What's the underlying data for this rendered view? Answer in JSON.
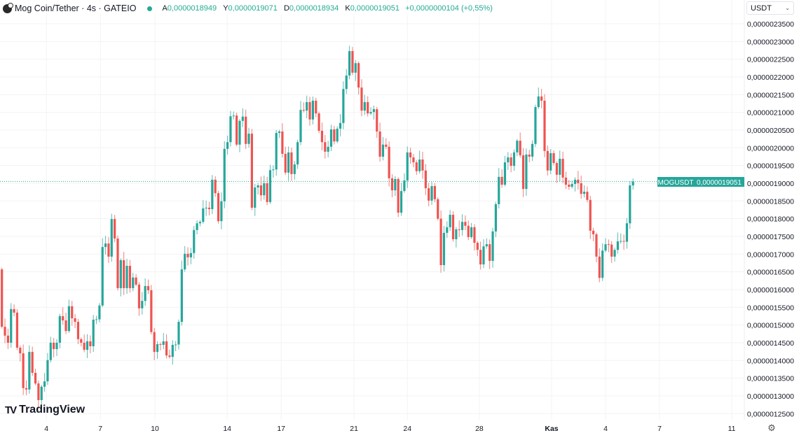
{
  "header": {
    "title": "Mog Coin/Tether · 4s · GATEIO",
    "ohlc": [
      {
        "key": "A",
        "value": "0,0000018949"
      },
      {
        "key": "Y",
        "value": "0,0000019071"
      },
      {
        "key": "D",
        "value": "0,0000018934"
      },
      {
        "key": "K",
        "value": "0,0000019051"
      }
    ],
    "change": "+0,0000000104 (+0,55%)",
    "status_color": "#22ab94"
  },
  "currency_select": {
    "value": "USDT"
  },
  "branding": {
    "logo_text": "TradingView"
  },
  "price_label": {
    "symbol": "MOGUSDT",
    "value": "0,0000019051"
  },
  "colors": {
    "up": "#26a69a",
    "down": "#ef5350",
    "grid": "#f2f3f5",
    "last_price": "#26a69a"
  },
  "chart_data": {
    "type": "candlestick",
    "title": "Mog Coin/Tether · 4s · GATEIO",
    "value_scale": "values in units of 1e-7 USDT",
    "ylim": [
      12.3,
      23.8
    ],
    "grid": true,
    "first_open": 16.57,
    "closes": [
      14.95,
      14.7,
      14.5,
      15.45,
      15.35,
      14.36,
      14.2,
      13.22,
      13.18,
      14.24,
      13.65,
      13.35,
      12.88,
      13.26,
      13.41,
      14.01,
      14.5,
      14.32,
      14.5,
      15.25,
      15.13,
      14.83,
      15.53,
      15.19,
      15.09,
      14.6,
      14.5,
      14.3,
      14.54,
      14.4,
      15.15,
      15.16,
      15.55,
      17.2,
      17.3,
      16.93,
      17.99,
      17.44,
      16.04,
      16.83,
      16.04,
      16.67,
      16.04,
      16.34,
      16.14,
      15.47,
      15.68,
      16.1,
      15.98,
      14.8,
      14.24,
      14.46,
      14.44,
      14.54,
      14.14,
      14.1,
      14.44,
      14.45,
      15.09,
      16.57,
      17.01,
      16.91,
      17.03,
      17.68,
      17.87,
      17.91,
      18.29,
      18.31,
      18.27,
      19.1,
      18.72,
      17.93,
      18.49,
      19.97,
      20.16,
      20.89,
      20.91,
      20.09,
      20.76,
      20.88,
      20.11,
      20.4,
      18.31,
      18.88,
      18.94,
      18.66,
      19.0,
      18.47,
      19.37,
      19.39,
      20.42,
      20.46,
      19.83,
      19.3,
      19.87,
      19.26,
      19.53,
      20.16,
      21.07,
      21.05,
      21.29,
      20.8,
      21.33,
      20.97,
      20.48,
      20.16,
      19.89,
      20.03,
      20.52,
      20.18,
      20.54,
      20.7,
      21.66,
      22.04,
      22.73,
      22.12,
      22.39,
      21.7,
      21.05,
      21.29,
      20.97,
      21.01,
      21.09,
      20.46,
      19.75,
      20.09,
      20.03,
      19.14,
      18.8,
      19.12,
      18.17,
      18.78,
      19.08,
      19.87,
      19.73,
      19.59,
      19.34,
      19.67,
      19.36,
      18.86,
      18.51,
      18.92,
      18.55,
      18.0,
      16.69,
      17.6,
      17.76,
      18.11,
      17.42,
      17.7,
      17.68,
      17.91,
      17.8,
      17.48,
      17.76,
      17.32,
      17.12,
      16.71,
      17.22,
      17.28,
      16.81,
      17.64,
      18.41,
      19.18,
      18.96,
      19.59,
      19.73,
      19.49,
      19.87,
      20.2,
      19.79,
      18.84,
      19.81,
      19.75,
      20.11,
      21.15,
      21.45,
      21.33,
      19.91,
      19.36,
      19.85,
      19.57,
      19.24,
      19.69,
      19.16,
      18.96,
      18.9,
      18.98,
      19.1,
      19.0,
      18.7,
      18.76,
      18.53,
      17.66,
      17.56,
      16.93,
      16.33,
      17.1,
      17.28,
      17.27,
      16.93,
      17.12,
      17.36,
      17.37,
      17.35,
      17.87,
      18.94,
      19.051
    ],
    "last_price": 19.051,
    "y_ticks": [
      {
        "value": 23.5,
        "label": "0,0000023500"
      },
      {
        "value": 23.0,
        "label": "0,0000023000"
      },
      {
        "value": 22.5,
        "label": "0,0000022500"
      },
      {
        "value": 22.0,
        "label": "0,0000022000"
      },
      {
        "value": 21.5,
        "label": "0,0000021500"
      },
      {
        "value": 21.0,
        "label": "0,0000021000"
      },
      {
        "value": 20.5,
        "label": "0,0000020500"
      },
      {
        "value": 20.0,
        "label": "0,0000020000"
      },
      {
        "value": 19.5,
        "label": "0,0000019500"
      },
      {
        "value": 19.0,
        "label": "0,0000019000"
      },
      {
        "value": 18.5,
        "label": "0,0000018500"
      },
      {
        "value": 18.0,
        "label": "0,0000018000"
      },
      {
        "value": 17.5,
        "label": "0,0000017500"
      },
      {
        "value": 17.0,
        "label": "0,0000017000"
      },
      {
        "value": 16.5,
        "label": "0,0000016500"
      },
      {
        "value": 16.0,
        "label": "0,0000016000"
      },
      {
        "value": 15.5,
        "label": "0,0000015500"
      },
      {
        "value": 15.0,
        "label": "0,0000015000"
      },
      {
        "value": 14.5,
        "label": "0,0000014500"
      },
      {
        "value": 14.0,
        "label": "0,0000014000"
      },
      {
        "value": 13.5,
        "label": "0,0000013500"
      },
      {
        "value": 13.0,
        "label": "0,0000013000"
      },
      {
        "value": 12.5,
        "label": "0,0000012500"
      }
    ],
    "x_ticks": [
      {
        "bar": 14.6,
        "label": "4"
      },
      {
        "bar": 32.3,
        "label": "7"
      },
      {
        "bar": 50.2,
        "label": "10"
      },
      {
        "bar": 73.9,
        "label": "14"
      },
      {
        "bar": 91.6,
        "label": "17"
      },
      {
        "bar": 115.5,
        "label": "21"
      },
      {
        "bar": 133.0,
        "label": "24"
      },
      {
        "bar": 156.6,
        "label": "28"
      },
      {
        "bar": 180.3,
        "label": "Kas",
        "bold": true
      },
      {
        "bar": 198.0,
        "label": "4"
      },
      {
        "bar": 215.7,
        "label": "7"
      },
      {
        "bar": 239.4,
        "label": "11"
      }
    ]
  }
}
